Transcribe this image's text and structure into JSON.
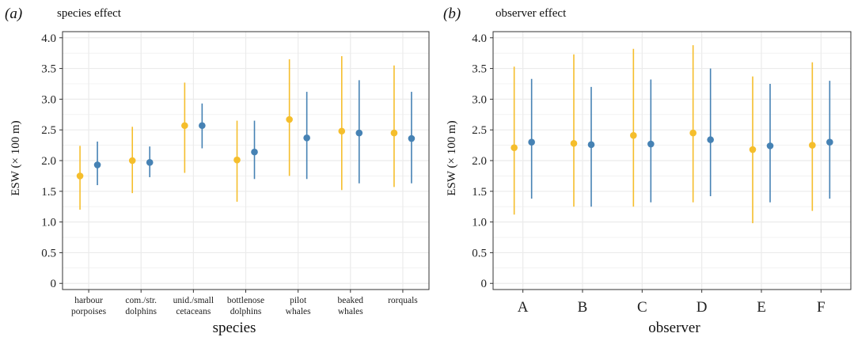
{
  "colors": {
    "series1": "#F5BE2C",
    "series2": "#4682B4",
    "grid": "#EBEBEB",
    "frame": "#333333"
  },
  "chart_data": [
    {
      "type": "scatter",
      "panel_tag": "(a)",
      "title": "species effect",
      "xlabel": "species",
      "ylabel": "ESW (× 100 m)",
      "ylim": [
        -0.1,
        4.1
      ],
      "yticks": [
        "0",
        "0.5",
        "1.0",
        "1.5",
        "2.0",
        "2.5",
        "3.0",
        "3.5",
        "4.0"
      ],
      "grid": true,
      "categories": [
        [
          "harbour",
          "porpoises"
        ],
        [
          "com./str.",
          "dolphins"
        ],
        [
          "unid./small",
          "cetaceans"
        ],
        [
          "bottlenose",
          "dolphins"
        ],
        [
          "pilot",
          "whales"
        ],
        [
          "beaked",
          "whales"
        ],
        [
          "rorquals"
        ]
      ],
      "series": [
        {
          "color": "#F5BE2C",
          "values": [
            1.75,
            2.0,
            2.57,
            2.01,
            2.67,
            2.48,
            2.45
          ],
          "lower": [
            1.2,
            1.47,
            1.8,
            1.33,
            1.75,
            1.52,
            1.57
          ],
          "upper": [
            2.24,
            2.55,
            3.27,
            2.65,
            3.65,
            3.7,
            3.55
          ]
        },
        {
          "color": "#4682B4",
          "values": [
            1.93,
            1.97,
            2.57,
            2.14,
            2.37,
            2.45,
            2.36
          ],
          "lower": [
            1.6,
            1.73,
            2.2,
            1.7,
            1.7,
            1.63,
            1.63
          ],
          "upper": [
            2.31,
            2.23,
            2.93,
            2.65,
            3.12,
            3.31,
            3.12
          ]
        }
      ]
    },
    {
      "type": "scatter",
      "panel_tag": "(b)",
      "title": "observer effect",
      "xlabel": "observer",
      "ylabel": "ESW (× 100 m)",
      "ylim": [
        -0.1,
        4.1
      ],
      "yticks": [
        "0",
        "0.5",
        "1.0",
        "1.5",
        "2.0",
        "2.5",
        "3.0",
        "3.5",
        "4.0"
      ],
      "grid": true,
      "categories": [
        [
          "A"
        ],
        [
          "B"
        ],
        [
          "C"
        ],
        [
          "D"
        ],
        [
          "E"
        ],
        [
          "F"
        ]
      ],
      "series": [
        {
          "color": "#F5BE2C",
          "values": [
            2.21,
            2.28,
            2.41,
            2.45,
            2.18,
            2.25
          ],
          "lower": [
            1.12,
            1.25,
            1.25,
            1.32,
            0.98,
            1.18
          ],
          "upper": [
            3.53,
            3.73,
            3.82,
            3.88,
            3.37,
            3.6
          ]
        },
        {
          "color": "#4682B4",
          "values": [
            2.3,
            2.26,
            2.27,
            2.34,
            2.24,
            2.3
          ],
          "lower": [
            1.38,
            1.25,
            1.32,
            1.42,
            1.32,
            1.38
          ],
          "upper": [
            3.33,
            3.2,
            3.32,
            3.5,
            3.25,
            3.3
          ]
        }
      ]
    }
  ]
}
